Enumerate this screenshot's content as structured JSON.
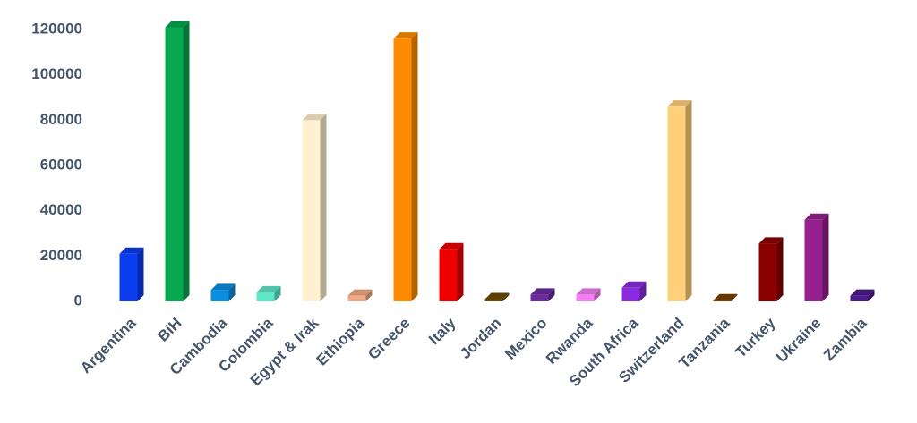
{
  "chart_data": {
    "type": "bar3d",
    "categories": [
      "Argentina",
      "BiH",
      "Cambodia",
      "Colombia",
      "Egypt & Irak",
      "Ethiopia",
      "Greece",
      "Italy",
      "Jordan",
      "Mexico",
      "Rwanda",
      "South Africa",
      "Switzerland",
      "Tanzania",
      "Turkey",
      "Ukraine",
      "Zambia"
    ],
    "values": [
      21000,
      121000,
      5000,
      4000,
      80000,
      2500,
      116000,
      23000,
      1000,
      3000,
      3000,
      6000,
      86000,
      500,
      25500,
      36000,
      2500
    ],
    "colors": [
      "#0a3cf0",
      "#07a84f",
      "#0a8fe0",
      "#5ee6c8",
      "#fff0cf",
      "#f0a882",
      "#ff8c00",
      "#ee0000",
      "#6b4c00",
      "#6a2aa0",
      "#f47ef0",
      "#8a2be2",
      "#ffd07a",
      "#7a4000",
      "#8b0000",
      "#96208e",
      "#4a1a8a"
    ],
    "ylim": [
      0,
      130000
    ],
    "yticks": [
      0,
      20000,
      40000,
      60000,
      80000,
      100000,
      120000
    ],
    "grid": false
  }
}
